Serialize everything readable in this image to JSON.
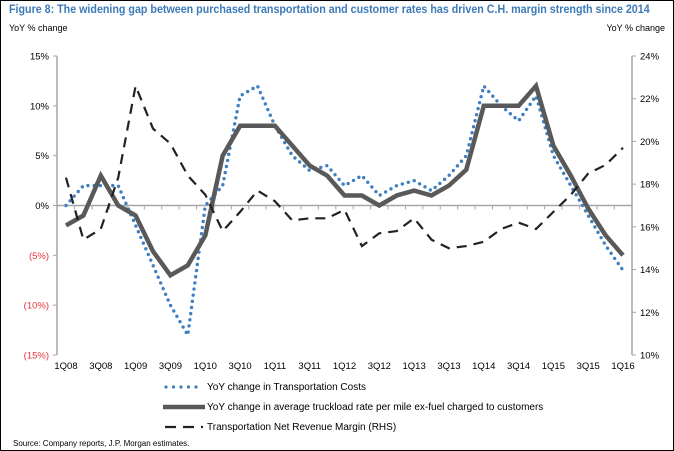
{
  "figure": {
    "title": "Figure 8: The widening gap between purchased transportation and customer rates has driven C.H. margin strength since 2014",
    "left_axis_unit": "YoY % change",
    "right_axis_unit": "YoY % change",
    "source": "Source: Company reports, J.P. Morgan estimates."
  },
  "chart_data": {
    "type": "line",
    "title": "Figure 8: The widening gap between purchased transportation and customer rates has driven C.H. margin strength since 2014",
    "xlabel": "",
    "ylabel": "YoY % change",
    "y2label": "YoY % change",
    "x": [
      "1Q08",
      "2Q08",
      "3Q08",
      "4Q08",
      "1Q09",
      "2Q09",
      "3Q09",
      "4Q09",
      "1Q10",
      "2Q10",
      "3Q10",
      "4Q10",
      "1Q11",
      "2Q11",
      "3Q11",
      "4Q11",
      "1Q12",
      "2Q12",
      "3Q12",
      "4Q12",
      "1Q13",
      "2Q13",
      "3Q13",
      "4Q13",
      "1Q14",
      "2Q14",
      "3Q14",
      "4Q14",
      "1Q15",
      "2Q15",
      "3Q15",
      "4Q15",
      "1Q16"
    ],
    "x_tick_labels": [
      "1Q08",
      "3Q08",
      "1Q09",
      "3Q09",
      "1Q10",
      "3Q10",
      "1Q11",
      "3Q11",
      "1Q12",
      "3Q12",
      "1Q13",
      "3Q13",
      "1Q14",
      "3Q14",
      "1Q15",
      "3Q15",
      "1Q16"
    ],
    "ylim": [
      -15,
      15
    ],
    "y_ticks": [
      15,
      10,
      5,
      0,
      -5,
      -10,
      -15
    ],
    "y_tick_labels": [
      "15%",
      "10%",
      "5%",
      "0%",
      "(5%)",
      "(10%)",
      "(15%)"
    ],
    "y2lim": [
      10,
      24
    ],
    "y2_ticks": [
      24,
      22,
      20,
      18,
      16,
      14,
      12,
      10
    ],
    "y2_tick_labels": [
      "24%",
      "22%",
      "20%",
      "18%",
      "16%",
      "14%",
      "12%",
      "10%"
    ],
    "grid": false,
    "legend_position": "bottom",
    "series": [
      {
        "name": "YoY change in Transportation Costs",
        "axis": "left",
        "style": "dotted",
        "color": "#3f7fc1",
        "values": [
          0,
          2,
          2,
          2,
          -2,
          -6,
          -10,
          -13,
          0,
          2,
          11,
          12,
          8,
          5,
          3.5,
          4,
          2,
          3,
          1,
          2,
          2.5,
          1.5,
          3,
          5,
          12,
          10,
          8.5,
          11,
          5,
          2,
          -1,
          -4,
          -6.5
        ]
      },
      {
        "name": "YoY change in average truckload rate per mile ex-fuel charged to customers",
        "axis": "left",
        "style": "solid",
        "color": "#595959",
        "values": [
          -2,
          -1,
          3,
          0,
          -1,
          -4.6,
          -7,
          -6,
          -3,
          5,
          8,
          8,
          8,
          6,
          4,
          3,
          1,
          1,
          0,
          1,
          1.5,
          1,
          2,
          3.6,
          10,
          10,
          10,
          12,
          6,
          3,
          -0.3,
          -3,
          -5
        ]
      },
      {
        "name": "Transportation Net Revenue Margin (RHS)",
        "axis": "right",
        "style": "dashed",
        "color": "#222222",
        "values": [
          18.3,
          15.4,
          15.9,
          18.3,
          22.6,
          20.6,
          19.9,
          18.4,
          17.5,
          15.8,
          16.7,
          17.7,
          17.2,
          16.3,
          16.4,
          16.4,
          16.8,
          15.1,
          15.7,
          15.8,
          16.4,
          15.4,
          15.0,
          15.1,
          15.3,
          15.9,
          16.2,
          15.9,
          16.7,
          17.5,
          18.5,
          18.9,
          19.7
        ]
      }
    ],
    "negative_label_color": "#e8333a",
    "axis_color": "#a6a6a6"
  }
}
